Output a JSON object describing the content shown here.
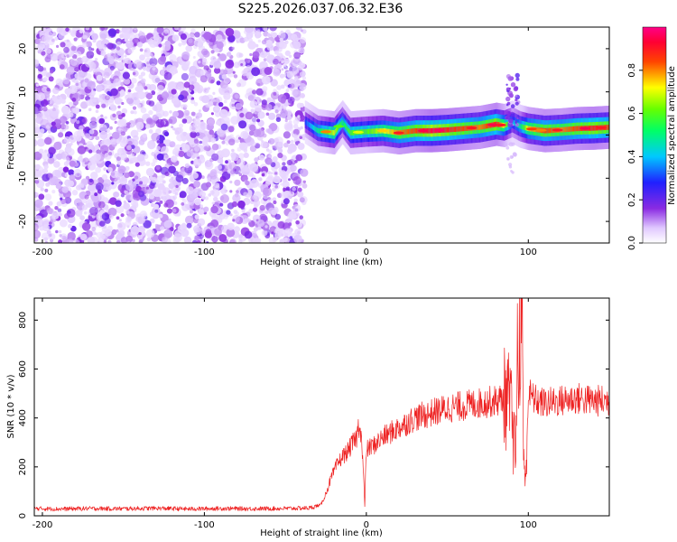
{
  "title": "S225.2026.037.06.32.E36",
  "colors": {
    "snr_line": "#ee2222",
    "scatter_noise": "#a050ff",
    "axis": "#000000"
  },
  "chart_data": [
    {
      "type": "heatmap",
      "xlabel": "Height of straight line (km)",
      "ylabel": "Frequency (Hz)",
      "xlim": [
        -205,
        150
      ],
      "ylim": [
        -25,
        25
      ],
      "x_ticks": [
        -200,
        -100,
        0,
        100
      ],
      "y_ticks": [
        -20,
        -10,
        0,
        10,
        20
      ],
      "colorbar": {
        "label": "Normalized spectral amplitude",
        "range": [
          0,
          1
        ],
        "ticks": [
          "0.0",
          "0.2",
          "0.4",
          "0.6",
          "0.8"
        ],
        "colormap": "rainbow (white-violet-blue-cyan-green-yellow-red-magenta)"
      },
      "description_regions": [
        {
          "x_range": [
            -205,
            -38
          ],
          "pattern": "broadband low-amplitude noise across all frequencies"
        },
        {
          "x_range": [
            -38,
            150
          ],
          "pattern": "narrow high-amplitude band near 0-2 Hz"
        }
      ],
      "ridge": {
        "x": [
          -38,
          -30,
          -20,
          -15,
          -10,
          0,
          10,
          20,
          30,
          40,
          50,
          60,
          70,
          80,
          85,
          90,
          95,
          100,
          110,
          120,
          130,
          140,
          150
        ],
        "freq": [
          3,
          1,
          0.5,
          3,
          0.5,
          0.8,
          1,
          0.5,
          1,
          1,
          1.2,
          1.5,
          1.8,
          2.5,
          2.2,
          3,
          2,
          1.5,
          1,
          1.2,
          1.5,
          1.6,
          1.8
        ],
        "amplitude": [
          0.3,
          0.5,
          0.7,
          0.5,
          0.6,
          0.6,
          0.7,
          0.8,
          0.85,
          0.95,
          0.9,
          0.85,
          0.8,
          0.9,
          0.7,
          0.4,
          0.5,
          0.75,
          0.85,
          0.8,
          0.85,
          0.9,
          0.85
        ]
      }
    },
    {
      "type": "line",
      "xlabel": "Height of straight line (km)",
      "ylabel": "SNR (10 * v/v)",
      "xlim": [
        -205,
        150
      ],
      "ylim": [
        0,
        890
      ],
      "x_ticks": [
        -200,
        -100,
        0,
        100
      ],
      "y_ticks": [
        0,
        200,
        400,
        600,
        800
      ],
      "series": [
        {
          "x": [
            -205,
            -190,
            -170,
            -150,
            -130,
            -110,
            -90,
            -70,
            -50,
            -35,
            -28,
            -25,
            -22,
            -20,
            -18,
            -15,
            -12,
            -10,
            -8,
            -6,
            -5,
            -4,
            -3,
            -2,
            -1,
            0,
            5,
            10,
            15,
            20,
            25,
            30,
            40,
            50,
            60,
            70,
            80,
            85,
            88,
            90,
            92,
            94,
            95,
            96,
            97,
            98,
            100,
            105,
            110,
            120,
            130,
            140,
            150
          ],
          "y": [
            30,
            28,
            30,
            29,
            31,
            28,
            30,
            29,
            30,
            32,
            45,
            90,
            150,
            180,
            210,
            240,
            260,
            280,
            300,
            320,
            360,
            380,
            310,
            200,
            40,
            270,
            290,
            320,
            340,
            360,
            380,
            400,
            420,
            440,
            450,
            460,
            470,
            480,
            470,
            400,
            250,
            600,
            850,
            880,
            300,
            100,
            500,
            470,
            460,
            470,
            480,
            470,
            470
          ]
        }
      ]
    }
  ]
}
